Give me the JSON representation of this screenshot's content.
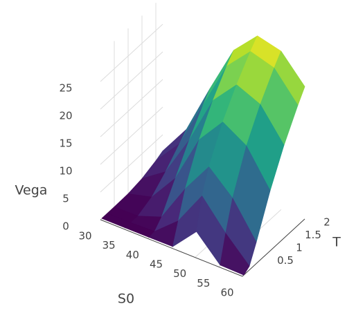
{
  "chart_data": {
    "type": "surface",
    "colorscale": "Viridis",
    "x_title": "S0",
    "y_title": "T",
    "z_title": "Vega",
    "x": [
      30,
      35,
      40,
      45,
      50,
      55,
      60
    ],
    "y": [
      0.05,
      0.25,
      0.5,
      1,
      1.5,
      2,
      2.25
    ],
    "z": [
      [
        0,
        0,
        0,
        0.04,
        4.46,
        0.11,
        0
      ],
      [
        0,
        0,
        0.14,
        3.76,
        9.97,
        4.92,
        0.69
      ],
      [
        0,
        0.06,
        1.59,
        8.42,
        14.08,
        10.12,
        3.87
      ],
      [
        0.07,
        1.19,
        6.32,
        14.97,
        19.89,
        17.28,
        10.89
      ],
      [
        0.51,
        3.47,
        10.9,
        19.78,
        24.32,
        22.47,
        16.81
      ],
      [
        1.44,
        6.22,
        14.94,
        23.69,
        28.04,
        26.76,
        21.74
      ],
      [
        2.06,
        7.67,
        16.8,
        25.41,
        29.72,
        28.66,
        23.95
      ]
    ],
    "xlim": [
      30,
      60
    ],
    "ylim": [
      0,
      2.25
    ],
    "zlim": [
      0,
      30
    ],
    "xticks": [
      30,
      35,
      40,
      45,
      50,
      55,
      60
    ],
    "yticks": [
      0.5,
      1,
      1.5,
      2
    ],
    "zticks": [
      0,
      5,
      10,
      15,
      20,
      25
    ],
    "grid": true
  }
}
